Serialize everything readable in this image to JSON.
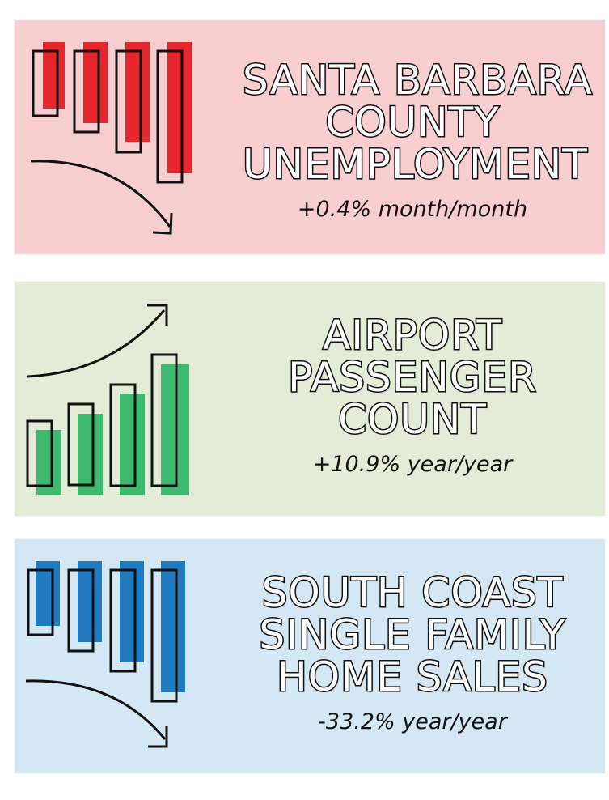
{
  "cards": [
    {
      "title_lines": [
        "SANTA BARBARA",
        "COUNTY",
        "UNEMPLOYMENT"
      ],
      "stat": "+0.4% month/month",
      "background": "#f9ced1",
      "accent": "#e8262e",
      "icon": "bar-chart-trending-down-icon",
      "trend": "down"
    },
    {
      "title_lines": [
        "AIRPORT",
        "PASSENGER",
        "COUNT"
      ],
      "stat": "+10.9% year/year",
      "background": "#e2ecd6",
      "accent": "#3fb870",
      "icon": "bar-chart-trending-up-icon",
      "trend": "up"
    },
    {
      "title_lines": [
        "SOUTH COAST",
        "SINGLE FAMILY",
        "HOME SALES"
      ],
      "stat": "-33.2% year/year",
      "background": "#d3e7f5",
      "accent": "#1f7ac0",
      "icon": "bar-chart-trending-down-icon",
      "trend": "down"
    }
  ]
}
